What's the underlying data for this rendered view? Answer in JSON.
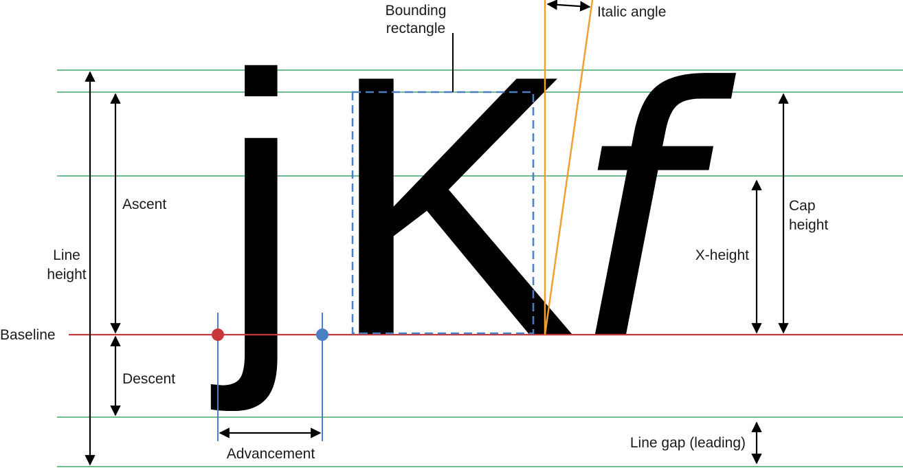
{
  "glyphs": {
    "j": "j",
    "K": "K",
    "f": "f"
  },
  "labels": {
    "bounding_line1": "Bounding",
    "bounding_line2": "rectangle",
    "italic_angle": "Italic angle",
    "ascent": "Ascent",
    "line_height_line1": "Line",
    "line_height_line2": "height",
    "baseline": "Baseline",
    "descent": "Descent",
    "advancement": "Advancement",
    "x_height": "X-height",
    "cap_height_line1": "Cap",
    "cap_height_line2": "height",
    "line_gap": "Line gap (leading)"
  },
  "colors": {
    "guide_lines": "#6dbd8f",
    "baseline": "#c8383a",
    "bounding_box": "#4a7fc1",
    "advance_lines": "#4a7fc1",
    "origin_dot": "#c8383a",
    "advance_dot": "#4a7fc1",
    "italic_angle_lines": "#f0a030",
    "arrows": "#000000"
  }
}
